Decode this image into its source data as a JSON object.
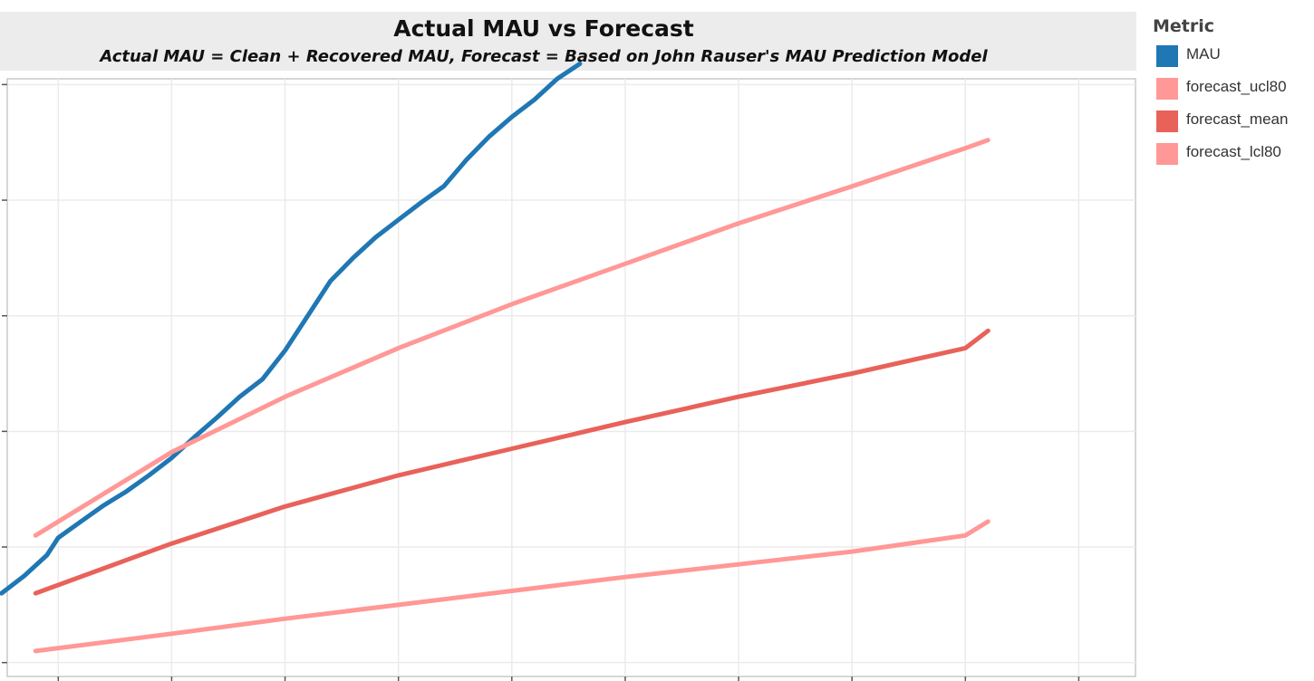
{
  "chart_data": {
    "type": "line",
    "title": "Actual MAU vs Forecast",
    "subtitle": "Actual MAU = Clean + Recovered MAU, Forecast = Based on John Rauser's MAU Prediction Model",
    "xlabel": "",
    "ylabel": "",
    "grid": true,
    "legend_title": "Metric",
    "legend_position": "right",
    "xlim": [
      -0.45,
      9.5
    ],
    "ylim": [
      -0.12,
      5.05
    ],
    "series": [
      {
        "name": "MAU",
        "color": "#1f77b4",
        "x": [
          -0.5,
          -0.3,
          -0.1,
          0.0,
          0.2,
          0.4,
          0.6,
          0.8,
          1.0,
          1.2,
          1.4,
          1.6,
          1.8,
          2.0,
          2.2,
          2.4,
          2.6,
          2.8,
          3.0,
          3.2,
          3.4,
          3.6,
          3.8,
          4.0,
          4.2,
          4.4,
          4.6
        ],
        "y": [
          0.6,
          0.75,
          0.93,
          1.08,
          1.22,
          1.36,
          1.48,
          1.62,
          1.77,
          1.95,
          2.12,
          2.3,
          2.45,
          2.7,
          3.0,
          3.3,
          3.5,
          3.68,
          3.83,
          3.98,
          4.12,
          4.35,
          4.55,
          4.72,
          4.87,
          5.05,
          5.18
        ]
      },
      {
        "name": "forecast_ucl80",
        "color": "#ff9896",
        "x": [
          -0.2,
          1.0,
          2.0,
          3.0,
          4.0,
          5.0,
          6.0,
          7.0,
          8.0,
          8.2
        ],
        "y": [
          1.1,
          1.82,
          2.3,
          2.72,
          3.1,
          3.45,
          3.8,
          4.12,
          4.45,
          4.52
        ]
      },
      {
        "name": "forecast_mean",
        "color": "#e8625a",
        "x": [
          -0.2,
          1.0,
          2.0,
          3.0,
          4.0,
          5.0,
          6.0,
          7.0,
          8.0,
          8.2
        ],
        "y": [
          0.6,
          1.03,
          1.35,
          1.62,
          1.85,
          2.08,
          2.3,
          2.5,
          2.72,
          2.87
        ]
      },
      {
        "name": "forecast_lcl80",
        "color": "#ff9896",
        "x": [
          -0.2,
          1.0,
          2.0,
          3.0,
          4.0,
          5.0,
          6.0,
          7.0,
          8.0,
          8.2
        ],
        "y": [
          0.1,
          0.25,
          0.38,
          0.5,
          0.62,
          0.74,
          0.85,
          0.96,
          1.1,
          1.22
        ]
      }
    ]
  }
}
